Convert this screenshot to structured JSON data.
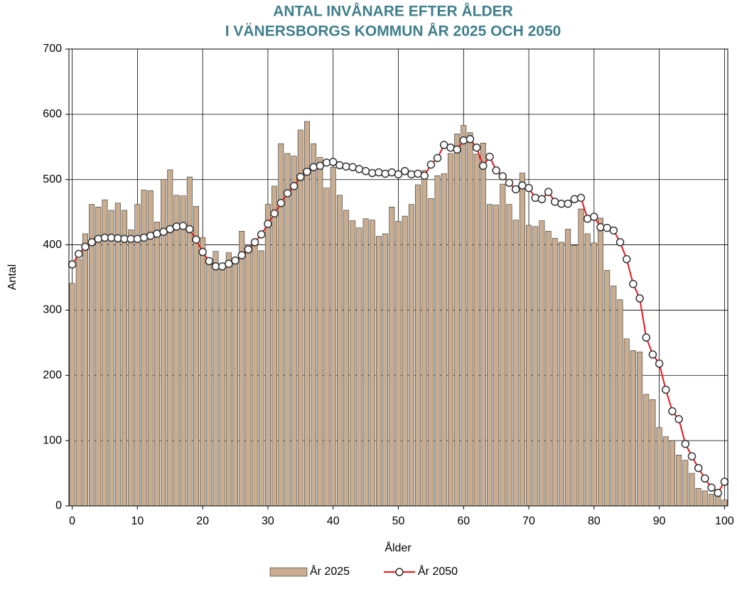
{
  "chart_data": {
    "type": "bar",
    "title": [
      "ANTAL INVÅNARE EFTER ÅLDER",
      "I VÄNERSBORGS KOMMUN ÅR 2025 OCH 2050"
    ],
    "x_label": "Ålder",
    "y_label": "Antal",
    "x": [
      0,
      1,
      2,
      3,
      4,
      5,
      6,
      7,
      8,
      9,
      10,
      11,
      12,
      13,
      14,
      15,
      16,
      17,
      18,
      19,
      20,
      21,
      22,
      23,
      24,
      25,
      26,
      27,
      28,
      29,
      30,
      31,
      32,
      33,
      34,
      35,
      36,
      37,
      38,
      39,
      40,
      41,
      42,
      43,
      44,
      45,
      46,
      47,
      48,
      49,
      50,
      51,
      52,
      53,
      54,
      55,
      56,
      57,
      58,
      59,
      60,
      61,
      62,
      63,
      64,
      65,
      66,
      67,
      68,
      69,
      70,
      71,
      72,
      73,
      74,
      75,
      76,
      77,
      78,
      79,
      80,
      81,
      82,
      83,
      84,
      85,
      86,
      87,
      88,
      89,
      90,
      91,
      92,
      93,
      94,
      95,
      96,
      97,
      98,
      99,
      100
    ],
    "xlim": [
      -0.5,
      100.5
    ],
    "xticks": [
      0,
      10,
      20,
      30,
      40,
      50,
      60,
      70,
      80,
      90,
      100
    ],
    "ylim": [
      0,
      700
    ],
    "yticks": [
      0,
      100,
      200,
      300,
      400,
      500,
      600,
      700
    ],
    "grid": true,
    "legend": "bottom",
    "series": [
      {
        "name": "År 2025",
        "type": "bar",
        "color": "#c9ad91",
        "values": [
          341,
          378,
          417,
          462,
          458,
          469,
          453,
          464,
          453,
          423,
          462,
          484,
          483,
          435,
          500,
          515,
          476,
          475,
          504,
          459,
          411,
          370,
          390,
          367,
          388,
          378,
          421,
          400,
          407,
          391,
          462,
          490,
          555,
          540,
          536,
          576,
          589,
          555,
          534,
          487,
          519,
          476,
          453,
          437,
          426,
          440,
          438,
          413,
          417,
          458,
          436,
          444,
          462,
          492,
          514,
          471,
          506,
          509,
          540,
          570,
          583,
          572,
          539,
          556,
          462,
          461,
          493,
          462,
          438,
          510,
          430,
          428,
          437,
          421,
          410,
          404,
          424,
          399,
          455,
          417,
          403,
          441,
          361,
          337,
          316,
          256,
          238,
          236,
          171,
          163,
          120,
          106,
          100,
          78,
          70,
          50,
          27,
          23,
          18,
          15,
          9
        ]
      },
      {
        "name": "År 2050",
        "type": "line",
        "color": "#e8141a",
        "values": [
          370,
          386,
          397,
          404,
          409,
          411,
          411,
          410,
          409,
          409,
          409,
          411,
          414,
          417,
          420,
          424,
          428,
          429,
          424,
          408,
          389,
          375,
          367,
          367,
          371,
          376,
          384,
          393,
          404,
          416,
          432,
          448,
          464,
          479,
          490,
          504,
          512,
          519,
          521,
          526,
          527,
          522,
          520,
          519,
          516,
          513,
          510,
          511,
          509,
          511,
          508,
          513,
          508,
          509,
          506,
          523,
          533,
          553,
          549,
          546,
          560,
          562,
          549,
          521,
          535,
          514,
          505,
          495,
          485,
          491,
          487,
          472,
          470,
          481,
          466,
          463,
          463,
          470,
          472,
          440,
          443,
          427,
          426,
          422,
          404,
          378,
          340,
          318,
          258,
          232,
          218,
          178,
          145,
          133,
          95,
          76,
          58,
          42,
          28,
          20,
          37
        ]
      }
    ]
  }
}
